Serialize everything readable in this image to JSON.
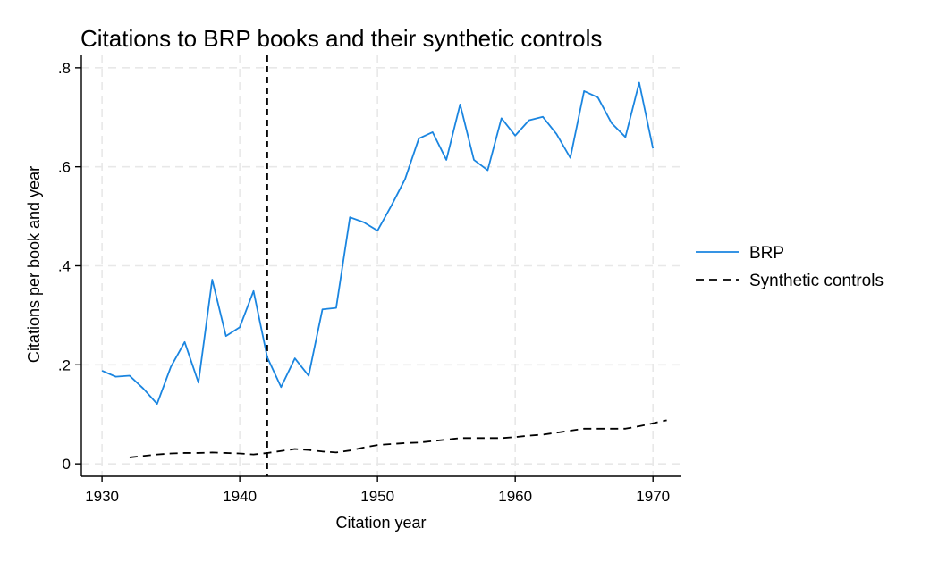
{
  "chart_data": {
    "type": "line",
    "title": "Citations to BRP books and their synthetic controls",
    "xlabel": "Citation year",
    "ylabel": "Citations per book and year",
    "xlim": [
      1928.5,
      1972
    ],
    "ylim": [
      -0.025,
      0.825
    ],
    "x_ticks": [
      1930,
      1940,
      1950,
      1960,
      1970
    ],
    "x_tick_labels": [
      "1930",
      "1940",
      "1950",
      "1960",
      "1970"
    ],
    "y_ticks": [
      0,
      0.2,
      0.4,
      0.6,
      0.8
    ],
    "y_tick_labels": [
      "0",
      ".2",
      ".4",
      ".6",
      ".8"
    ],
    "grid": true,
    "legend_position": "right",
    "vline": {
      "x": 1942,
      "style": "dashed",
      "color": "#000000"
    },
    "series": [
      {
        "name": "BRP",
        "color": "#1a85e0",
        "style": "solid",
        "x": [
          1930,
          1931,
          1932,
          1933,
          1934,
          1935,
          1936,
          1937,
          1938,
          1939,
          1940,
          1941,
          1942,
          1943,
          1944,
          1945,
          1946,
          1947,
          1948,
          1949,
          1950,
          1951,
          1952,
          1953,
          1954,
          1955,
          1956,
          1957,
          1958,
          1959,
          1960,
          1961,
          1962,
          1963,
          1964,
          1965,
          1966,
          1967,
          1968,
          1969,
          1970
        ],
        "values": [
          0.188,
          0.176,
          0.178,
          0.152,
          0.121,
          0.196,
          0.246,
          0.164,
          0.372,
          0.258,
          0.276,
          0.349,
          0.215,
          0.155,
          0.213,
          0.178,
          0.312,
          0.315,
          0.498,
          0.488,
          0.471,
          0.521,
          0.575,
          0.657,
          0.67,
          0.614,
          0.726,
          0.614,
          0.593,
          0.698,
          0.663,
          0.694,
          0.701,
          0.666,
          0.618,
          0.753,
          0.74,
          0.688,
          0.66,
          0.77,
          0.637
        ]
      },
      {
        "name": "Synthetic controls",
        "color": "#000000",
        "style": "dashed",
        "x": [
          1932,
          1933,
          1934,
          1935,
          1936,
          1937,
          1938,
          1939,
          1940,
          1941,
          1942,
          1943,
          1944,
          1945,
          1946,
          1947,
          1948,
          1949,
          1950,
          1951,
          1952,
          1953,
          1954,
          1955,
          1956,
          1957,
          1958,
          1959,
          1960,
          1961,
          1962,
          1963,
          1964,
          1965,
          1966,
          1967,
          1968,
          1969,
          1970,
          1971
        ],
        "values": [
          0.013,
          0.016,
          0.019,
          0.021,
          0.022,
          0.022,
          0.023,
          0.022,
          0.021,
          0.019,
          0.022,
          0.026,
          0.03,
          0.028,
          0.025,
          0.023,
          0.027,
          0.033,
          0.038,
          0.04,
          0.042,
          0.043,
          0.046,
          0.049,
          0.052,
          0.052,
          0.052,
          0.052,
          0.054,
          0.057,
          0.059,
          0.063,
          0.067,
          0.071,
          0.071,
          0.071,
          0.071,
          0.076,
          0.082,
          0.088
        ]
      }
    ]
  }
}
